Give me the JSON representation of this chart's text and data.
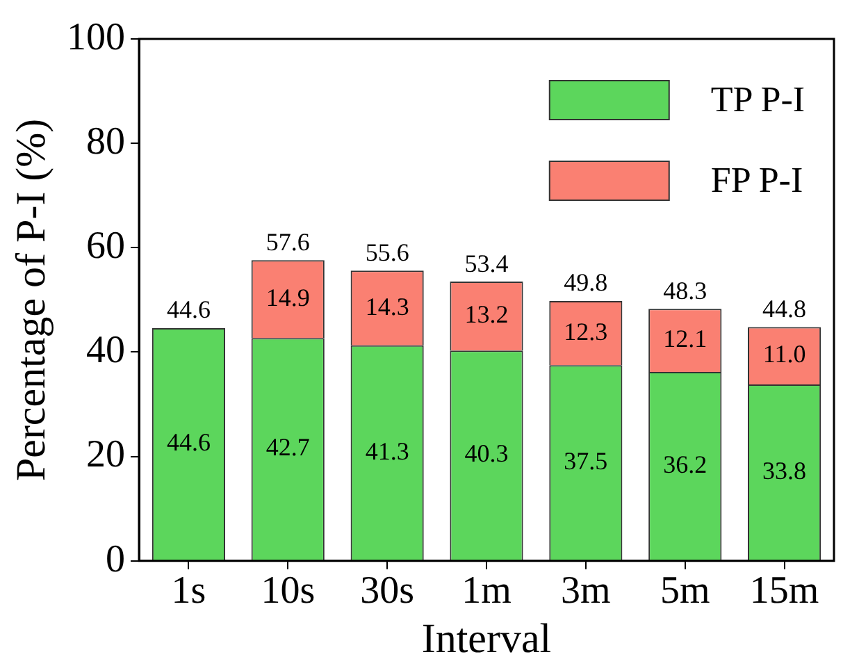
{
  "chart_data": {
    "type": "bar",
    "xlabel": "Interval",
    "ylabel": "Percentage of P-I (%)",
    "categories": [
      "1s",
      "10s",
      "30s",
      "1m",
      "3m",
      "5m",
      "15m"
    ],
    "stacked": true,
    "series": [
      {
        "name": "TP P-I",
        "color": "#5cd65c",
        "values": [
          44.6,
          42.7,
          41.3,
          40.3,
          37.5,
          36.2,
          33.8
        ],
        "value_labels": [
          "44.6",
          "42.7",
          "41.3",
          "40.3",
          "37.5",
          "36.2",
          "33.8"
        ]
      },
      {
        "name": "FP P-I",
        "color": "#fa8072",
        "values": [
          null,
          14.9,
          14.3,
          13.2,
          12.3,
          12.1,
          11.0
        ],
        "value_labels": [
          null,
          "14.9",
          "14.3",
          "13.2",
          "12.3",
          "12.1",
          "11.0"
        ]
      }
    ],
    "totals": [
      "44.6",
      "57.6",
      "55.6",
      "53.4",
      "49.8",
      "48.3",
      "44.8"
    ],
    "ylim": [
      0,
      100
    ],
    "yticks": [
      0,
      20,
      40,
      60,
      80,
      100
    ],
    "grid": false,
    "legend": "top right"
  }
}
